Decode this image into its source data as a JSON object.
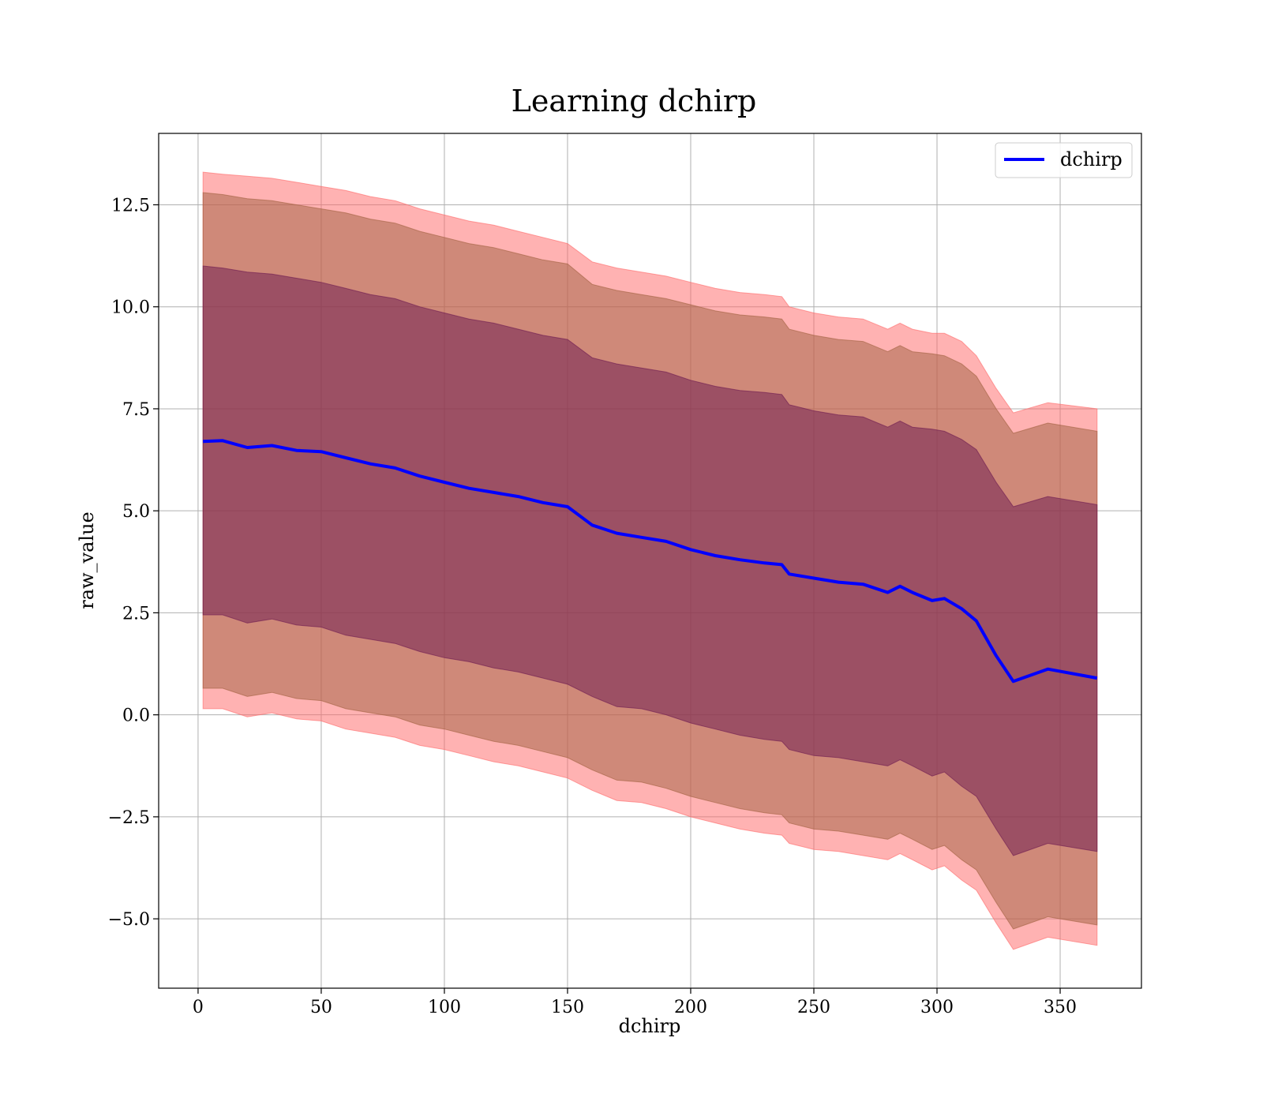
{
  "chart_data": {
    "type": "line",
    "title": "Learning dchirp",
    "xlabel": "dchirp",
    "ylabel": "raw_value",
    "xlim": [
      -16,
      383
    ],
    "ylim": [
      -6.7,
      14.25
    ],
    "xticks": [
      0,
      50,
      100,
      150,
      200,
      250,
      300,
      350
    ],
    "xtick_labels": [
      "0",
      "50",
      "100",
      "150",
      "200",
      "250",
      "300",
      "350"
    ],
    "yticks": [
      -5.0,
      -2.5,
      0.0,
      2.5,
      5.0,
      7.5,
      10.0,
      12.5
    ],
    "ytick_labels": [
      "−5.0",
      "−2.5",
      "0.0",
      "2.5",
      "5.0",
      "7.5",
      "10.0",
      "12.5"
    ],
    "grid": true,
    "legend": {
      "position": "top-right",
      "entries": [
        "dchirp"
      ]
    },
    "x": [
      2,
      10,
      20,
      30,
      40,
      50,
      60,
      70,
      80,
      90,
      100,
      110,
      120,
      130,
      140,
      150,
      160,
      170,
      180,
      190,
      200,
      210,
      220,
      230,
      237,
      240,
      250,
      260,
      270,
      280,
      285,
      290,
      298,
      303,
      310,
      316,
      324,
      331,
      345,
      365
    ],
    "series": [
      {
        "name": "dchirp",
        "color": "#0000ff",
        "values": [
          6.7,
          6.72,
          6.55,
          6.6,
          6.48,
          6.45,
          6.3,
          6.15,
          6.05,
          5.85,
          5.7,
          5.55,
          5.45,
          5.35,
          5.2,
          5.1,
          4.65,
          4.45,
          4.35,
          4.25,
          4.05,
          3.9,
          3.8,
          3.72,
          3.68,
          3.45,
          3.35,
          3.25,
          3.2,
          3.0,
          3.15,
          3.0,
          2.8,
          2.85,
          2.6,
          2.3,
          1.45,
          0.82,
          1.12,
          0.9
        ]
      }
    ],
    "bands": [
      {
        "name": "band-3sigma",
        "color": "#ff6666",
        "upper": [
          13.3,
          13.25,
          13.2,
          13.15,
          13.05,
          12.95,
          12.85,
          12.7,
          12.6,
          12.4,
          12.25,
          12.1,
          12.0,
          11.85,
          11.7,
          11.55,
          11.1,
          10.95,
          10.85,
          10.75,
          10.6,
          10.45,
          10.35,
          10.3,
          10.25,
          10.0,
          9.85,
          9.75,
          9.7,
          9.45,
          9.6,
          9.45,
          9.35,
          9.35,
          9.15,
          8.8,
          8.0,
          7.4,
          7.65,
          7.5
        ],
        "lower": [
          0.15,
          0.15,
          -0.05,
          0.05,
          -0.1,
          -0.15,
          -0.35,
          -0.45,
          -0.55,
          -0.75,
          -0.85,
          -1.0,
          -1.15,
          -1.25,
          -1.4,
          -1.55,
          -1.85,
          -2.1,
          -2.15,
          -2.3,
          -2.5,
          -2.65,
          -2.8,
          -2.9,
          -2.95,
          -3.15,
          -3.3,
          -3.35,
          -3.45,
          -3.55,
          -3.4,
          -3.55,
          -3.8,
          -3.7,
          -4.05,
          -4.3,
          -5.1,
          -5.75,
          -5.45,
          -5.65
        ]
      },
      {
        "name": "band-2sigma",
        "color": "#a06040",
        "upper": [
          12.8,
          12.75,
          12.65,
          12.6,
          12.5,
          12.4,
          12.3,
          12.15,
          12.05,
          11.85,
          11.7,
          11.55,
          11.45,
          11.3,
          11.15,
          11.05,
          10.55,
          10.4,
          10.3,
          10.2,
          10.05,
          9.9,
          9.8,
          9.75,
          9.7,
          9.45,
          9.3,
          9.2,
          9.15,
          8.9,
          9.05,
          8.9,
          8.85,
          8.8,
          8.6,
          8.3,
          7.5,
          6.9,
          7.15,
          6.95
        ],
        "lower": [
          0.65,
          0.65,
          0.45,
          0.55,
          0.4,
          0.35,
          0.15,
          0.05,
          -0.05,
          -0.25,
          -0.35,
          -0.5,
          -0.65,
          -0.75,
          -0.9,
          -1.05,
          -1.35,
          -1.6,
          -1.65,
          -1.8,
          -2.0,
          -2.15,
          -2.3,
          -2.4,
          -2.45,
          -2.65,
          -2.8,
          -2.85,
          -2.95,
          -3.05,
          -2.9,
          -3.05,
          -3.3,
          -3.2,
          -3.55,
          -3.8,
          -4.6,
          -5.25,
          -4.95,
          -5.15
        ]
      },
      {
        "name": "band-1sigma",
        "color": "#6a1850",
        "upper": [
          11.0,
          10.95,
          10.85,
          10.8,
          10.7,
          10.6,
          10.45,
          10.3,
          10.2,
          10.0,
          9.85,
          9.7,
          9.6,
          9.45,
          9.3,
          9.2,
          8.75,
          8.6,
          8.5,
          8.4,
          8.2,
          8.05,
          7.95,
          7.9,
          7.85,
          7.6,
          7.45,
          7.35,
          7.3,
          7.05,
          7.2,
          7.05,
          7.0,
          6.95,
          6.75,
          6.5,
          5.7,
          5.1,
          5.35,
          5.15
        ],
        "lower": [
          2.45,
          2.45,
          2.25,
          2.35,
          2.2,
          2.15,
          1.95,
          1.85,
          1.75,
          1.55,
          1.4,
          1.3,
          1.15,
          1.05,
          0.9,
          0.75,
          0.45,
          0.2,
          0.15,
          0.0,
          -0.2,
          -0.35,
          -0.5,
          -0.6,
          -0.65,
          -0.85,
          -1.0,
          -1.05,
          -1.15,
          -1.25,
          -1.1,
          -1.25,
          -1.5,
          -1.4,
          -1.75,
          -2.0,
          -2.8,
          -3.45,
          -3.15,
          -3.35
        ]
      }
    ]
  }
}
